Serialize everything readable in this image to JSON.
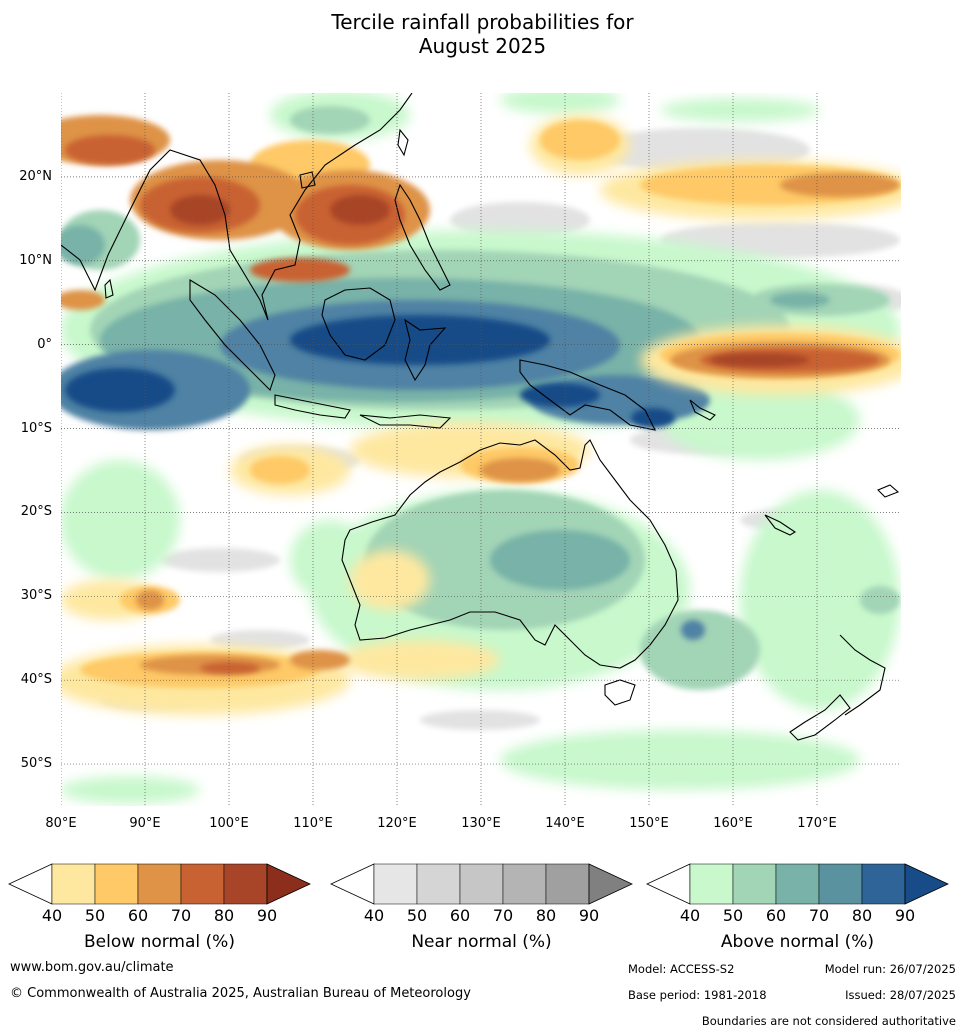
{
  "title_line1": "Tercile rainfall probabilities for",
  "title_line2": "August 2025",
  "map": {
    "lon_range": [
      80,
      180
    ],
    "lat_range": [
      -55,
      30
    ],
    "lat_labels": [
      "20°N",
      "10°N",
      "0°",
      "10°S",
      "20°S",
      "30°S",
      "40°S",
      "50°S"
    ],
    "lat_values": [
      20,
      10,
      0,
      -10,
      -20,
      -30,
      -40,
      -50
    ],
    "lon_labels": [
      "80°E",
      "90°E",
      "100°E",
      "110°E",
      "120°E",
      "130°E",
      "140°E",
      "150°E",
      "160°E",
      "170°E"
    ],
    "lon_values": [
      80,
      90,
      100,
      110,
      120,
      130,
      140,
      150,
      160,
      170
    ]
  },
  "colorbars": [
    {
      "title": "Below normal (%)",
      "ticks": [
        "40",
        "50",
        "60",
        "70",
        "80",
        "90"
      ],
      "colors": [
        "#ffffff",
        "#fee8a0",
        "#fec966",
        "#de9346",
        "#c96232",
        "#a84528",
        "#8b2e1c"
      ]
    },
    {
      "title": "Near normal (%)",
      "ticks": [
        "40",
        "50",
        "60",
        "70",
        "80",
        "90"
      ],
      "colors": [
        "#ffffff",
        "#e6e6e6",
        "#d5d5d5",
        "#c6c6c6",
        "#b4b4b4",
        "#a0a0a0",
        "#808080"
      ]
    },
    {
      "title": "Above normal (%)",
      "ticks": [
        "40",
        "50",
        "60",
        "70",
        "80",
        "90"
      ],
      "colors": [
        "#ffffff",
        "#c8f8cc",
        "#a2d4b6",
        "#78b2a8",
        "#5a92a0",
        "#2e6498",
        "#174c88"
      ]
    }
  ],
  "footer": {
    "url": "www.bom.gov.au/climate",
    "copyright": "© Commonwealth of Australia 2025, Australian Bureau of Meteorology",
    "model": "Model: ACCESS-S2",
    "model_run": "Model run: 26/07/2025",
    "base_period": "Base period: 1981-2018",
    "issued": "Issued: 28/07/2025",
    "disclaimer": "Boundaries are not considered authoritative"
  }
}
